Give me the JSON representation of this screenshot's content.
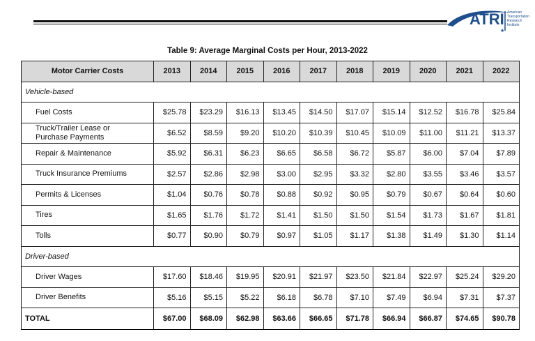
{
  "header": {
    "logo": "ATRI",
    "logo_lines": [
      "American",
      "Transportation",
      "Research",
      "Institute"
    ]
  },
  "table": {
    "title": "Table 9: Average Marginal Costs per Hour, 2013-2022",
    "columns": [
      "Motor Carrier Costs",
      "2013",
      "2014",
      "2015",
      "2016",
      "2017",
      "2018",
      "2019",
      "2020",
      "2021",
      "2022"
    ],
    "sections": [
      {
        "label": "Vehicle-based",
        "rows": [
          {
            "label": "Fuel Costs",
            "values": [
              "$25.78",
              "$23.29",
              "$16.13",
              "$13.45",
              "$14.50",
              "$17.07",
              "$15.14",
              "$12.52",
              "$16.78",
              "$25.84"
            ]
          },
          {
            "label": "Truck/Trailer Lease or\nPurchase Payments",
            "values": [
              "$6.52",
              "$8.59",
              "$9.20",
              "$10.20",
              "$10.39",
              "$10.45",
              "$10.09",
              "$11.00",
              "$11.21",
              "$13.37"
            ]
          },
          {
            "label": "Repair & Maintenance",
            "values": [
              "$5.92",
              "$6.31",
              "$6.23",
              "$6.65",
              "$6.58",
              "$6.72",
              "$5.87",
              "$6.00",
              "$7.04",
              "$7.89"
            ]
          },
          {
            "label": "Truck Insurance Premiums",
            "values": [
              "$2.57",
              "$2.86",
              "$2.98",
              "$3.00",
              "$2.95",
              "$3.32",
              "$2.80",
              "$3.55",
              "$3.46",
              "$3.57"
            ]
          },
          {
            "label": "Permits & Licenses",
            "values": [
              "$1.04",
              "$0.76",
              "$0.78",
              "$0.88",
              "$0.92",
              "$0.95",
              "$0.79",
              "$0.67",
              "$0.64",
              "$0.60"
            ]
          },
          {
            "label": "Tires",
            "values": [
              "$1.65",
              "$1.76",
              "$1.72",
              "$1.41",
              "$1.50",
              "$1.50",
              "$1.54",
              "$1.73",
              "$1.67",
              "$1.81"
            ]
          },
          {
            "label": "Tolls",
            "values": [
              "$0.77",
              "$0.90",
              "$0.79",
              "$0.97",
              "$1.05",
              "$1.17",
              "$1.38",
              "$1.49",
              "$1.30",
              "$1.14"
            ]
          }
        ]
      },
      {
        "label": "Driver-based",
        "rows": [
          {
            "label": "Driver Wages",
            "values": [
              "$17.60",
              "$18.46",
              "$19.95",
              "$20.91",
              "$21.97",
              "$23.50",
              "$21.84",
              "$22.97",
              "$25.24",
              "$29.20"
            ]
          },
          {
            "label": "Driver Benefits",
            "values": [
              "$5.16",
              "$5.15",
              "$5.22",
              "$6.18",
              "$6.78",
              "$7.10",
              "$7.49",
              "$6.94",
              "$7.31",
              "$7.37"
            ]
          }
        ]
      }
    ],
    "total": {
      "label": "TOTAL",
      "values": [
        "$67.00",
        "$68.09",
        "$62.98",
        "$63.66",
        "$66.65",
        "$71.78",
        "$66.94",
        "$66.87",
        "$74.65",
        "$90.78"
      ]
    }
  }
}
